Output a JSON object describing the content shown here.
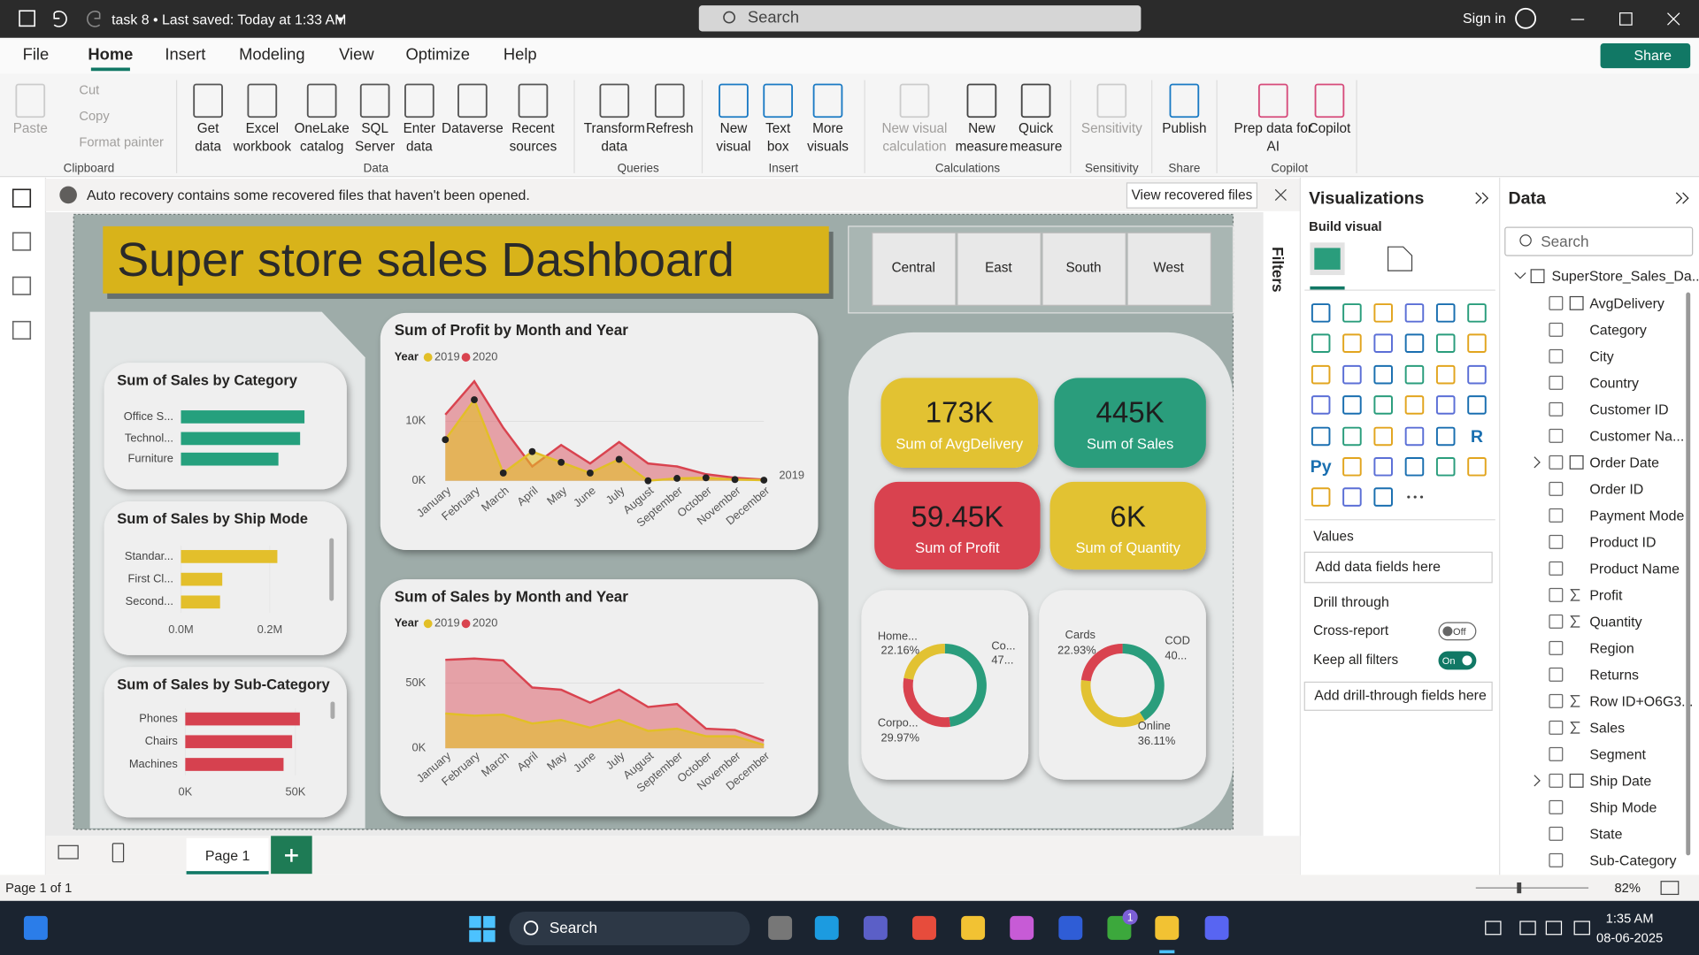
{
  "title_bar": {
    "document": "task 8 • Last saved: Today at 1:33 AM",
    "search": "Search",
    "sign_in": "Sign in"
  },
  "menu": {
    "tabs": [
      "File",
      "Home",
      "Insert",
      "Modeling",
      "View",
      "Optimize",
      "Help"
    ],
    "active": 1,
    "share": "Share"
  },
  "ribbon": {
    "groups": [
      {
        "label": "Clipboard",
        "buttons": [
          {
            "lines": [
              "Paste"
            ],
            "disabled": true
          }
        ],
        "small": [
          "Cut",
          "Copy",
          "Format painter"
        ]
      },
      {
        "label": "Data",
        "buttons": [
          {
            "lines": [
              "Get",
              "data"
            ]
          },
          {
            "lines": [
              "Excel",
              "workbook"
            ]
          },
          {
            "lines": [
              "OneLake",
              "catalog"
            ]
          },
          {
            "lines": [
              "SQL",
              "Server"
            ]
          },
          {
            "lines": [
              "Enter",
              "data"
            ]
          },
          {
            "lines": [
              "Dataverse"
            ]
          },
          {
            "lines": [
              "Recent",
              "sources"
            ]
          }
        ]
      },
      {
        "label": "Queries",
        "buttons": [
          {
            "lines": [
              "Transform",
              "data"
            ]
          },
          {
            "lines": [
              "Refresh"
            ]
          }
        ]
      },
      {
        "label": "Insert",
        "buttons": [
          {
            "lines": [
              "New",
              "visual"
            ]
          },
          {
            "lines": [
              "Text",
              "box"
            ]
          },
          {
            "lines": [
              "More",
              "visuals"
            ]
          }
        ]
      },
      {
        "label": "Calculations",
        "buttons": [
          {
            "lines": [
              "New visual",
              "calculation"
            ],
            "disabled": true
          },
          {
            "lines": [
              "New",
              "measure"
            ]
          },
          {
            "lines": [
              "Quick",
              "measure"
            ]
          }
        ]
      },
      {
        "label": "Sensitivity",
        "buttons": [
          {
            "lines": [
              "Sensitivity"
            ],
            "disabled": true
          }
        ]
      },
      {
        "label": "Share",
        "buttons": [
          {
            "lines": [
              "Publish"
            ]
          }
        ]
      },
      {
        "label": "Copilot",
        "buttons": [
          {
            "lines": [
              "Prep data for",
              "AI"
            ]
          },
          {
            "lines": [
              "Copilot"
            ]
          }
        ]
      }
    ]
  },
  "notification": {
    "message": "Auto recovery contains some recovered files that haven't been opened.",
    "action": "View recovered files"
  },
  "dashboard": {
    "title": "Super store sales Dashboard",
    "slicer": [
      "Central",
      "East",
      "South",
      "West"
    ],
    "cards": [
      {
        "value": "173K",
        "label": "Sum of AvgDelivery",
        "color": "#e2c232"
      },
      {
        "value": "445K",
        "label": "Sum of Sales",
        "color": "#2a9d7c"
      },
      {
        "value": "59.45K",
        "label": "Sum of Profit",
        "color": "#d9434f"
      },
      {
        "value": "6K",
        "label": "Sum of Quantity",
        "color": "#e2c232"
      }
    ],
    "charts": [
      {
        "type": "bar",
        "title": "Sum of Sales by Category",
        "categories": [
          "Office S...",
          "Technol...",
          "Furniture"
        ],
        "values": [
          161600,
          155900,
          127500
        ],
        "color": "#25a07d"
      },
      {
        "type": "bar",
        "title": "Sum of Sales by Ship Mode",
        "categories": [
          "Standar...",
          "First Cl...",
          "Second..."
        ],
        "values": [
          217000,
          93000,
          88000
        ],
        "color": "#e3bf2b",
        "xlim": [
          0,
          300000
        ],
        "xticks": [
          {
            "value": 0,
            "label": "0.0M"
          },
          {
            "value": 200000,
            "label": "0.2M"
          }
        ]
      },
      {
        "type": "bar",
        "title": "Sum of Sales by Sub-Category",
        "categories": [
          "Phones",
          "Chairs",
          "Machines"
        ],
        "values": [
          52000,
          48500,
          44600
        ],
        "color": "#d6414f",
        "xlim": [
          0,
          60000
        ],
        "xticks": [
          {
            "value": 0,
            "label": "0K"
          },
          {
            "value": 50000,
            "label": "50K"
          }
        ]
      },
      {
        "type": "area",
        "title": "Sum of Profit by Month and Year",
        "legend_title": "Year",
        "end_label": "2019",
        "categories": [
          "January",
          "February",
          "March",
          "April",
          "May",
          "June",
          "July",
          "August",
          "September",
          "October",
          "November",
          "December"
        ],
        "series": [
          {
            "name": "2019",
            "color": "#e2bf27",
            "markers": true,
            "values": [
              6900,
              13600,
              1300,
              4900,
              3100,
              1300,
              3600,
              0,
              400,
              500,
              200,
              100
            ]
          },
          {
            "name": "2020",
            "color": "#d9434f",
            "values": [
              11100,
              16700,
              8900,
              2400,
              6000,
              2900,
              6500,
              2900,
              2400,
              1100,
              500,
              200
            ]
          }
        ],
        "ylim": [
          0,
          18000
        ],
        "yticks": [
          {
            "value": 0,
            "label": "0K"
          },
          {
            "value": 10000,
            "label": "10K"
          }
        ]
      },
      {
        "type": "area",
        "title": "Sum of Sales by Month and Year",
        "legend_title": "Year",
        "categories": [
          "January",
          "February",
          "March",
          "April",
          "May",
          "June",
          "July",
          "August",
          "September",
          "October",
          "November",
          "December"
        ],
        "series": [
          {
            "name": "2019",
            "color": "#e2bf27",
            "values": [
              26700,
              25000,
              25800,
              19000,
              21700,
              15800,
              21700,
              13300,
              15000,
              9200,
              9200,
              2500
            ]
          },
          {
            "name": "2020",
            "color": "#d9434f",
            "values": [
              68000,
              69000,
              67500,
              46700,
              45000,
              35000,
              45000,
              31700,
              34000,
              15000,
              14000,
              5800
            ]
          }
        ],
        "ylim": [
          0,
          75000
        ],
        "yticks": [
          {
            "value": 0,
            "label": "0K"
          },
          {
            "value": 50000,
            "label": "50K"
          }
        ]
      },
      {
        "type": "donut",
        "categories": [
          "Co...",
          "Corpo...",
          "Home..."
        ],
        "values": [
          47.87,
          29.97,
          22.16
        ],
        "value_labels": [
          "47...",
          "29.97%",
          "22.16%"
        ],
        "colors": [
          "#2a9d7c",
          "#d9434f",
          "#e2c232"
        ]
      },
      {
        "type": "donut",
        "categories": [
          "COD",
          "Online",
          "Cards"
        ],
        "values": [
          40.96,
          36.11,
          22.93
        ],
        "value_labels": [
          "40...",
          "36.11%",
          "22.93%"
        ],
        "colors": [
          "#2a9d7c",
          "#e2c232",
          "#d9434f"
        ]
      }
    ]
  },
  "filters": "Filters",
  "visualizations": {
    "title": "Visualizations",
    "build": "Build visual",
    "icon_labels": [
      "R",
      "Py"
    ],
    "values": "Values",
    "values_placeholder": "Add data fields here",
    "drill": "Drill through",
    "cross_report": {
      "label": "Cross-report",
      "state": "Off",
      "on": false
    },
    "keep_filters": {
      "label": "Keep all filters",
      "state": "On",
      "on": true
    },
    "drill_placeholder": "Add drill-through fields here"
  },
  "data_pane": {
    "title": "Data",
    "search": "Search",
    "table": "SuperStore_Sales_Da...",
    "fields": [
      {
        "name": "AvgDelivery",
        "icon": "measure"
      },
      {
        "name": "Category"
      },
      {
        "name": "City"
      },
      {
        "name": "Country"
      },
      {
        "name": "Customer ID"
      },
      {
        "name": "Customer Na..."
      },
      {
        "name": "Order Date",
        "icon": "date"
      },
      {
        "name": "Order ID"
      },
      {
        "name": "Payment Mode"
      },
      {
        "name": "Product ID"
      },
      {
        "name": "Product Name"
      },
      {
        "name": "Profit",
        "icon": "sum"
      },
      {
        "name": "Quantity",
        "icon": "sum"
      },
      {
        "name": "Region"
      },
      {
        "name": "Returns"
      },
      {
        "name": "Row ID+O6G3...",
        "icon": "sum"
      },
      {
        "name": "Sales",
        "icon": "sum"
      },
      {
        "name": "Segment"
      },
      {
        "name": "Ship Date",
        "icon": "date"
      },
      {
        "name": "Ship Mode"
      },
      {
        "name": "State"
      },
      {
        "name": "Sub-Category"
      }
    ]
  },
  "footer": {
    "page_tab": "Page 1",
    "status": "Page 1 of 1",
    "zoom": "82%"
  },
  "taskbar": {
    "search": "Search",
    "time": "1:35 AM",
    "date": "08-06-2025",
    "badge": "1"
  }
}
